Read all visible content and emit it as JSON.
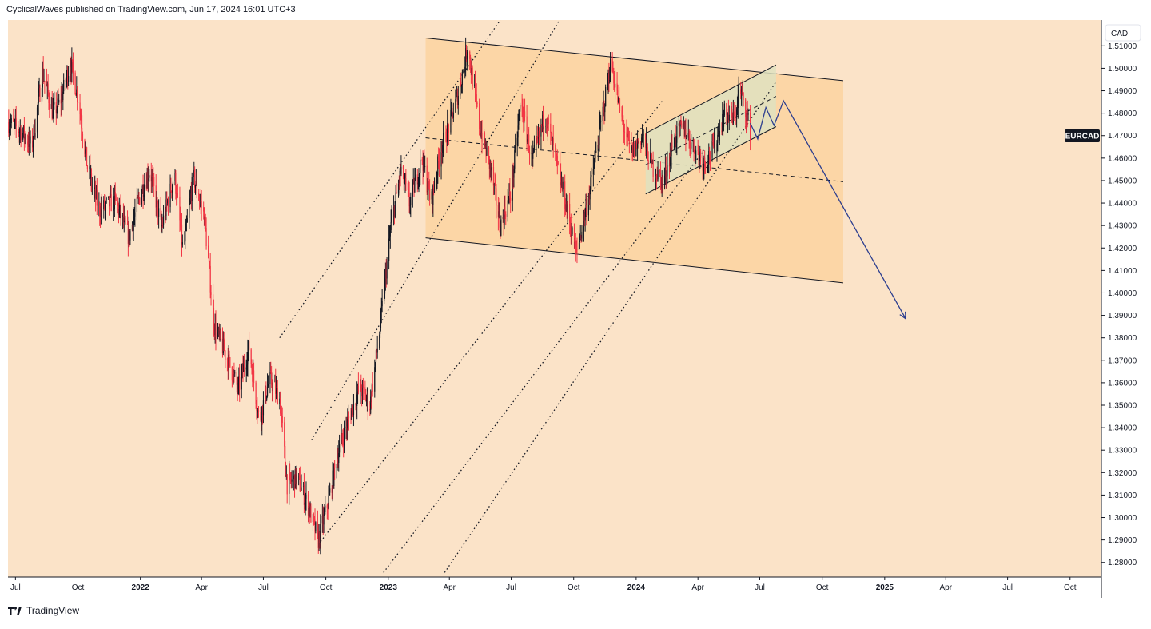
{
  "header": {
    "attribution": "CyclicalWaves published on TradingView.com, Jun 17, 2024 16:01 UTC+3"
  },
  "footer": {
    "brand": "TradingView",
    "logo_icon": "tradingview-logo-icon"
  },
  "colors": {
    "background": "#fbe3c8",
    "channel_fill": "#fbd3a0",
    "inner_channel_fill": "#dfe2c0",
    "candle_down": "#f23645",
    "candle_up": "#131722",
    "projection": "#2c3e8f",
    "axis_text": "#131722"
  },
  "chart_data": {
    "type": "candlestick",
    "symbol": "EURCAD",
    "currency_label": "CAD",
    "y_range": [
      1.2735,
      1.5215
    ],
    "y_ticks": [
      "1.51000",
      "1.50000",
      "1.49000",
      "1.48000",
      "1.47000",
      "1.46000",
      "1.45000",
      "1.44000",
      "1.43000",
      "1.42000",
      "1.41000",
      "1.40000",
      "1.39000",
      "1.38000",
      "1.37000",
      "1.36000",
      "1.35000",
      "1.34000",
      "1.33000",
      "1.32000",
      "1.31000",
      "1.30000",
      "1.29000",
      "1.28000"
    ],
    "x_range": [
      "2021-06-20",
      "2025-11-15"
    ],
    "x_ticks": [
      {
        "label": "Jul",
        "date": "2021-07-01",
        "bold": false
      },
      {
        "label": "Oct",
        "date": "2021-10-01",
        "bold": false
      },
      {
        "label": "2022",
        "date": "2022-01-01",
        "bold": true
      },
      {
        "label": "Apr",
        "date": "2022-04-01",
        "bold": false
      },
      {
        "label": "Jul",
        "date": "2022-07-01",
        "bold": false
      },
      {
        "label": "Oct",
        "date": "2022-10-01",
        "bold": false
      },
      {
        "label": "2023",
        "date": "2023-01-01",
        "bold": true
      },
      {
        "label": "Apr",
        "date": "2023-04-01",
        "bold": false
      },
      {
        "label": "Jul",
        "date": "2023-07-01",
        "bold": false
      },
      {
        "label": "Oct",
        "date": "2023-10-01",
        "bold": false
      },
      {
        "label": "2024",
        "date": "2024-01-01",
        "bold": true
      },
      {
        "label": "Apr",
        "date": "2024-04-01",
        "bold": false
      },
      {
        "label": "Jul",
        "date": "2024-07-01",
        "bold": false
      },
      {
        "label": "Oct",
        "date": "2024-10-01",
        "bold": false
      },
      {
        "label": "2025",
        "date": "2025-01-01",
        "bold": true
      },
      {
        "label": "Apr",
        "date": "2025-04-01",
        "bold": false
      },
      {
        "label": "Jul",
        "date": "2025-07-01",
        "bold": false
      },
      {
        "label": "Oct",
        "date": "2025-10-01",
        "bold": false
      }
    ],
    "price_path": [
      [
        "2021-06-20",
        1.476
      ],
      [
        "2021-07-10",
        1.472
      ],
      [
        "2021-07-25",
        1.465
      ],
      [
        "2021-08-10",
        1.498
      ],
      [
        "2021-08-25",
        1.48
      ],
      [
        "2021-09-05",
        1.485
      ],
      [
        "2021-09-20",
        1.503
      ],
      [
        "2021-10-01",
        1.487
      ],
      [
        "2021-10-15",
        1.456
      ],
      [
        "2021-11-01",
        1.437
      ],
      [
        "2021-11-25",
        1.441
      ],
      [
        "2021-12-15",
        1.425
      ],
      [
        "2022-01-01",
        1.444
      ],
      [
        "2022-01-15",
        1.455
      ],
      [
        "2022-02-01",
        1.429
      ],
      [
        "2022-02-20",
        1.453
      ],
      [
        "2022-03-05",
        1.418
      ],
      [
        "2022-03-20",
        1.452
      ],
      [
        "2022-04-05",
        1.434
      ],
      [
        "2022-04-20",
        1.385
      ],
      [
        "2022-05-10",
        1.37
      ],
      [
        "2022-05-25",
        1.357
      ],
      [
        "2022-06-10",
        1.376
      ],
      [
        "2022-06-25",
        1.343
      ],
      [
        "2022-07-10",
        1.362
      ],
      [
        "2022-07-25",
        1.353
      ],
      [
        "2022-08-05",
        1.315
      ],
      [
        "2022-08-20",
        1.318
      ],
      [
        "2022-09-05",
        1.305
      ],
      [
        "2022-09-20",
        1.29
      ],
      [
        "2022-10-05",
        1.308
      ],
      [
        "2022-10-20",
        1.33
      ],
      [
        "2022-11-05",
        1.345
      ],
      [
        "2022-11-20",
        1.358
      ],
      [
        "2022-12-05",
        1.35
      ],
      [
        "2022-12-20",
        1.385
      ],
      [
        "2023-01-05",
        1.43
      ],
      [
        "2023-01-20",
        1.455
      ],
      [
        "2023-02-01",
        1.44
      ],
      [
        "2023-02-20",
        1.46
      ],
      [
        "2023-03-05",
        1.44
      ],
      [
        "2023-03-20",
        1.465
      ],
      [
        "2023-04-01",
        1.475
      ],
      [
        "2023-04-15",
        1.49
      ],
      [
        "2023-04-28",
        1.51
      ],
      [
        "2023-05-15",
        1.475
      ],
      [
        "2023-06-01",
        1.455
      ],
      [
        "2023-06-15",
        1.43
      ],
      [
        "2023-07-01",
        1.445
      ],
      [
        "2023-07-15",
        1.485
      ],
      [
        "2023-08-01",
        1.458
      ],
      [
        "2023-08-20",
        1.48
      ],
      [
        "2023-09-10",
        1.452
      ],
      [
        "2023-09-25",
        1.432
      ],
      [
        "2023-10-05",
        1.417
      ],
      [
        "2023-10-25",
        1.446
      ],
      [
        "2023-11-10",
        1.475
      ],
      [
        "2023-11-25",
        1.503
      ],
      [
        "2023-12-10",
        1.478
      ],
      [
        "2023-12-25",
        1.462
      ],
      [
        "2024-01-10",
        1.47
      ],
      [
        "2024-01-25",
        1.456
      ],
      [
        "2024-02-10",
        1.449
      ],
      [
        "2024-02-25",
        1.468
      ],
      [
        "2024-03-10",
        1.474
      ],
      [
        "2024-03-25",
        1.465
      ],
      [
        "2024-04-10",
        1.458
      ],
      [
        "2024-04-25",
        1.465
      ],
      [
        "2024-05-10",
        1.48
      ],
      [
        "2024-05-25",
        1.477
      ],
      [
        "2024-06-01",
        1.491
      ],
      [
        "2024-06-10",
        1.482
      ],
      [
        "2024-06-17",
        1.472
      ]
    ],
    "annotations": {
      "outer_channel": {
        "upper": [
          [
            "2023-02-25",
            1.5135
          ],
          [
            "2024-11-01",
            1.4945
          ]
        ],
        "lower": [
          [
            "2023-02-25",
            1.4245
          ],
          [
            "2024-11-01",
            1.4045
          ]
        ],
        "mid": [
          [
            "2023-02-25",
            1.469
          ],
          [
            "2024-11-01",
            1.4495
          ]
        ]
      },
      "inner_channel": {
        "upper": [
          [
            "2024-01-15",
            1.471
          ],
          [
            "2024-07-25",
            1.5015
          ]
        ],
        "lower": [
          [
            "2024-01-15",
            1.444
          ],
          [
            "2024-07-25",
            1.474
          ]
        ],
        "mid": [
          [
            "2024-01-15",
            1.457
          ],
          [
            "2024-07-25",
            1.4875
          ]
        ]
      },
      "diagonal_parallels": [
        [
          [
            "2022-07-25",
            1.38
          ],
          [
            "2023-06-15",
            1.5215
          ]
        ],
        [
          [
            "2022-09-10",
            1.3345
          ],
          [
            "2023-09-10",
            1.5215
          ]
        ],
        [
          [
            "2022-09-20",
            1.288
          ],
          [
            "2024-02-10",
            1.486
          ]
        ],
        [
          [
            "2022-12-25",
            1.2755
          ],
          [
            "2024-04-10",
            1.4635
          ]
        ],
        [
          [
            "2023-03-25",
            1.2755
          ],
          [
            "2024-07-25",
            1.494
          ]
        ]
      ],
      "projection_path": [
        [
          "2024-06-17",
          1.4755
        ],
        [
          "2024-06-28",
          1.4685
        ],
        [
          "2024-07-10",
          1.4825
        ],
        [
          "2024-07-22",
          1.4745
        ],
        [
          "2024-08-05",
          1.4855
        ],
        [
          "2025-02-01",
          1.3885
        ]
      ]
    }
  }
}
